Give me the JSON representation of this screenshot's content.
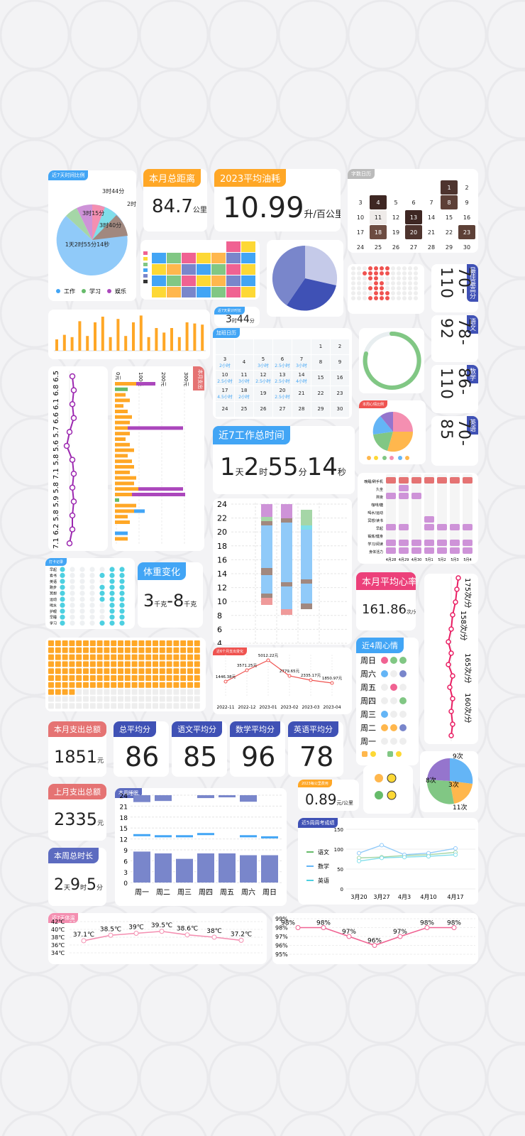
{
  "pie7": {
    "tag": "近7天时间比例",
    "center": "1天2时55分14秒",
    "l1": "3时44分",
    "l2": "2时",
    "l3": "3时15分",
    "l4": "3时40分",
    "legend": [
      "工作",
      "学习",
      "娱乐"
    ]
  },
  "dist": {
    "tag": "本月总距离",
    "value": "84.7",
    "unit": "公里"
  },
  "fuel": {
    "tag": "2023平均油耗",
    "value": "10.99",
    "unit": "升/百公里"
  },
  "cal1": {
    "tag": "字数日历",
    "rows": [
      [
        "",
        "",
        "",
        "",
        "",
        "1",
        "2"
      ],
      [
        "3",
        "4",
        "5",
        "6",
        "7",
        "8",
        "9"
      ],
      [
        "10",
        "11",
        "12",
        "13",
        "14",
        "15",
        "16"
      ],
      [
        "17",
        "18",
        "19",
        "20",
        "21",
        "22",
        "23"
      ],
      [
        "24",
        "25",
        "26",
        "27",
        "28",
        "29",
        "30"
      ]
    ]
  },
  "scores": [
    {
      "tag": "最佳最高分",
      "range": "70-110"
    },
    {
      "tag": "语文",
      "range": "78-92"
    },
    {
      "tag": "数学",
      "range": "86-110"
    },
    {
      "tag": "英语",
      "range": "70-85"
    }
  ],
  "small344": {
    "tag": "近7天累计时长",
    "value": "3",
    "unit": "时",
    "value2": "44",
    "unit2": "分"
  },
  "cal2": {
    "tag": "加班日历",
    "rows": [
      [
        [
          "",
          ""
        ],
        [
          "",
          ""
        ],
        [
          "",
          ""
        ],
        [
          "",
          ""
        ],
        [
          "",
          ""
        ],
        [
          "1",
          ""
        ],
        [
          "2",
          ""
        ]
      ],
      [
        [
          "3",
          "2小时"
        ],
        [
          "4",
          ""
        ],
        [
          "5",
          "3小时"
        ],
        [
          "6",
          "2.5小时"
        ],
        [
          "7",
          "3小时"
        ],
        [
          "8",
          ""
        ],
        [
          "9",
          ""
        ]
      ],
      [
        [
          "10",
          "2.5小时"
        ],
        [
          "11",
          "3小时"
        ],
        [
          "12",
          "2.5小时"
        ],
        [
          "13",
          "2.5小时"
        ],
        [
          "14",
          "4小时"
        ],
        [
          "15",
          ""
        ],
        [
          "16",
          ""
        ]
      ],
      [
        [
          "17",
          "4.5小时"
        ],
        [
          "18",
          "2小时"
        ],
        [
          "19",
          ""
        ],
        [
          "20",
          "2.5小时"
        ],
        [
          "21",
          ""
        ],
        [
          "22",
          ""
        ],
        [
          "23",
          ""
        ]
      ],
      [
        [
          "24",
          ""
        ],
        [
          "25",
          ""
        ],
        [
          "26",
          ""
        ],
        [
          "27",
          ""
        ],
        [
          "28",
          ""
        ],
        [
          "29",
          ""
        ],
        [
          "30",
          ""
        ]
      ]
    ]
  },
  "moodpie": {
    "tag": "本周心情比例"
  },
  "work7": {
    "tag": "近7工作总时间",
    "d": "1",
    "du": "天",
    "h": "2",
    "hu": "时",
    "m": "55",
    "mu": "分",
    "s": "14",
    "su": "秒"
  },
  "weightline": {
    "labels": [
      "6.5",
      "6.8",
      "6.1",
      "6.6",
      "5.7",
      "5.6",
      "5.8",
      "7.1",
      "5.8",
      "5.9",
      "5.8",
      "6.2",
      "7.1"
    ]
  },
  "hbar": {
    "tag": "本月支出",
    "ticks": [
      "0元",
      "100元",
      "200元",
      "300元"
    ]
  },
  "habits": {
    "rows": [
      "晚睡/刷手机",
      "久坐",
      "熬夜",
      "咖啡/糖",
      "喝水/运动",
      "冥想/读书",
      "早起",
      "锻炼/健身",
      "学习/阅读",
      "身体活力"
    ],
    "cols": [
      "4月28",
      "4月29",
      "4月30",
      "5月1",
      "5月2",
      "5月3",
      "5月4"
    ]
  },
  "stack": {
    "yticks": [
      "24",
      "22",
      "20",
      "18",
      "16",
      "14",
      "12",
      "10",
      "8",
      "6",
      "4"
    ]
  },
  "dots": {
    "tag": "打卡记录",
    "rows": [
      "早起",
      "看书",
      "英语",
      "跑步",
      "冥想",
      "运动",
      "喝水",
      "护眼",
      "早睡",
      "学习"
    ]
  },
  "weight": {
    "tag": "体重变化",
    "v1": "3",
    "u1": "千克",
    "v2": "-8",
    "u2": "千克"
  },
  "heart": {
    "tag": "本月平均心率",
    "value": "161.86",
    "unit": "次/分"
  },
  "heartline": {
    "labels": [
      "175次/分",
      "158次/分",
      "165次/分",
      "160次/分"
    ]
  },
  "linechart": {
    "tag": "近6个月支出变化",
    "labels": [
      "1446.38元",
      "3571.25元",
      "5012.22元",
      "2779.65元",
      "2335.17元",
      "1850.97元"
    ],
    "x": [
      "2022-11",
      "2022-12",
      "2023-01",
      "2023-02",
      "2023-03",
      "2023-04"
    ]
  },
  "mood4w": {
    "tag": "近4周心情",
    "days": [
      "周日",
      "周六",
      "周五",
      "周四",
      "周三",
      "周二",
      "周一"
    ]
  },
  "spend1": {
    "tag": "本月支出总额",
    "value": "1851",
    "unit": "元"
  },
  "avgs": [
    {
      "tag": "总平均分",
      "value": "86"
    },
    {
      "tag": "语文平均分",
      "value": "85"
    },
    {
      "tag": "数学平均分",
      "value": "96"
    },
    {
      "tag": "英语平均分",
      "value": "78"
    }
  ],
  "spend2": {
    "tag": "上月支出总额",
    "value": "2335",
    "unit": "元"
  },
  "sleep": {
    "tag": "本周睡眠",
    "yticks": [
      "24",
      "21",
      "18",
      "15",
      "12",
      "9",
      "6",
      "3",
      "0"
    ],
    "days": [
      "周一",
      "周二",
      "周三",
      "周四",
      "周五",
      "周六",
      "周日"
    ]
  },
  "fuel2": {
    "tag": "2023每公里费用",
    "value": "0.89",
    "unit": "元/公里"
  },
  "count": {
    "l1": "9次",
    "l2": "8次",
    "l3": "3次",
    "l4": "11次"
  },
  "total": {
    "tag": "本周总时长",
    "d": "2",
    "du": "天",
    "h": "9",
    "hu": "时",
    "m": "5",
    "mu": "分"
  },
  "exams": {
    "tag": "近5周周考成绩",
    "legend": [
      "语文",
      "数学",
      "英语"
    ],
    "yticks": [
      "150",
      "100",
      "50",
      "0"
    ],
    "x": [
      "3月20",
      "3月27",
      "4月3",
      "4月10",
      "4月17"
    ]
  },
  "temp": {
    "tag": "近7天体温",
    "yticks": [
      "42℃",
      "40℃",
      "38℃",
      "36℃",
      "34℃"
    ],
    "labels": [
      "37.1℃",
      "38.5℃",
      "39℃",
      "39.5℃",
      "38.6℃",
      "38℃",
      "37.2℃"
    ]
  },
  "pct": {
    "yticks": [
      "99%",
      "98%",
      "97%",
      "96%",
      "95%"
    ],
    "labels": [
      "98%",
      "98%",
      "97%",
      "96%",
      "97%",
      "98%",
      "98%"
    ]
  }
}
